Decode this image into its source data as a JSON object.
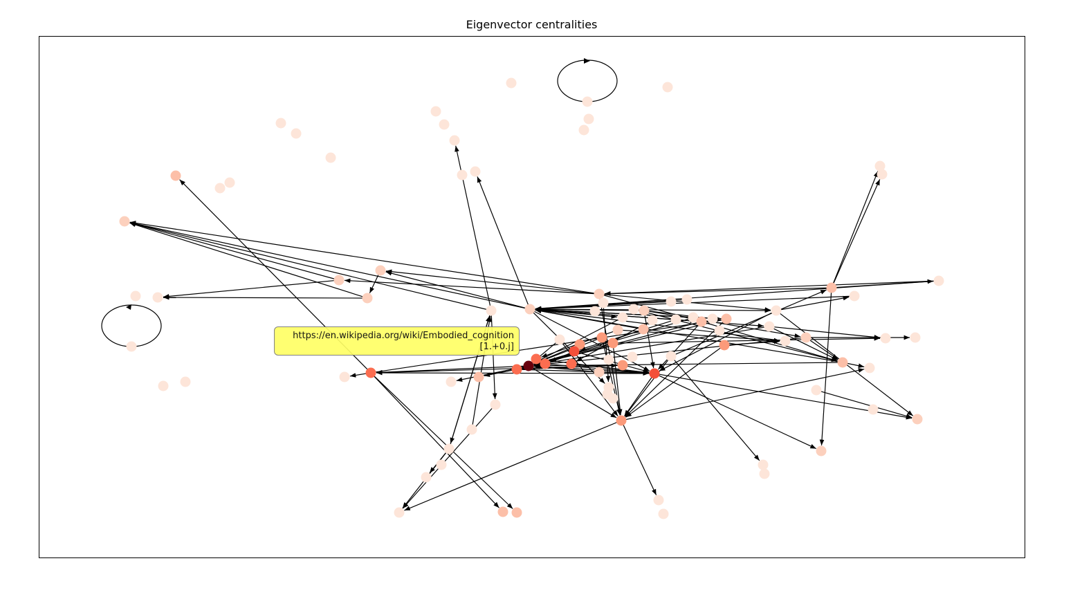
{
  "title": "Eigenvector centralities",
  "tooltip": {
    "url": "https://en.wikipedia.org/wiki/Embodied_cognition",
    "value": "[1.+0.j]"
  },
  "colors": {
    "node_low": "#fde5d9",
    "node_mid": "#fb9a7a",
    "node_high": "#f4503a",
    "node_max": "#67000d",
    "edge": "#000000",
    "tooltip_bg": "#ffff66"
  }
}
